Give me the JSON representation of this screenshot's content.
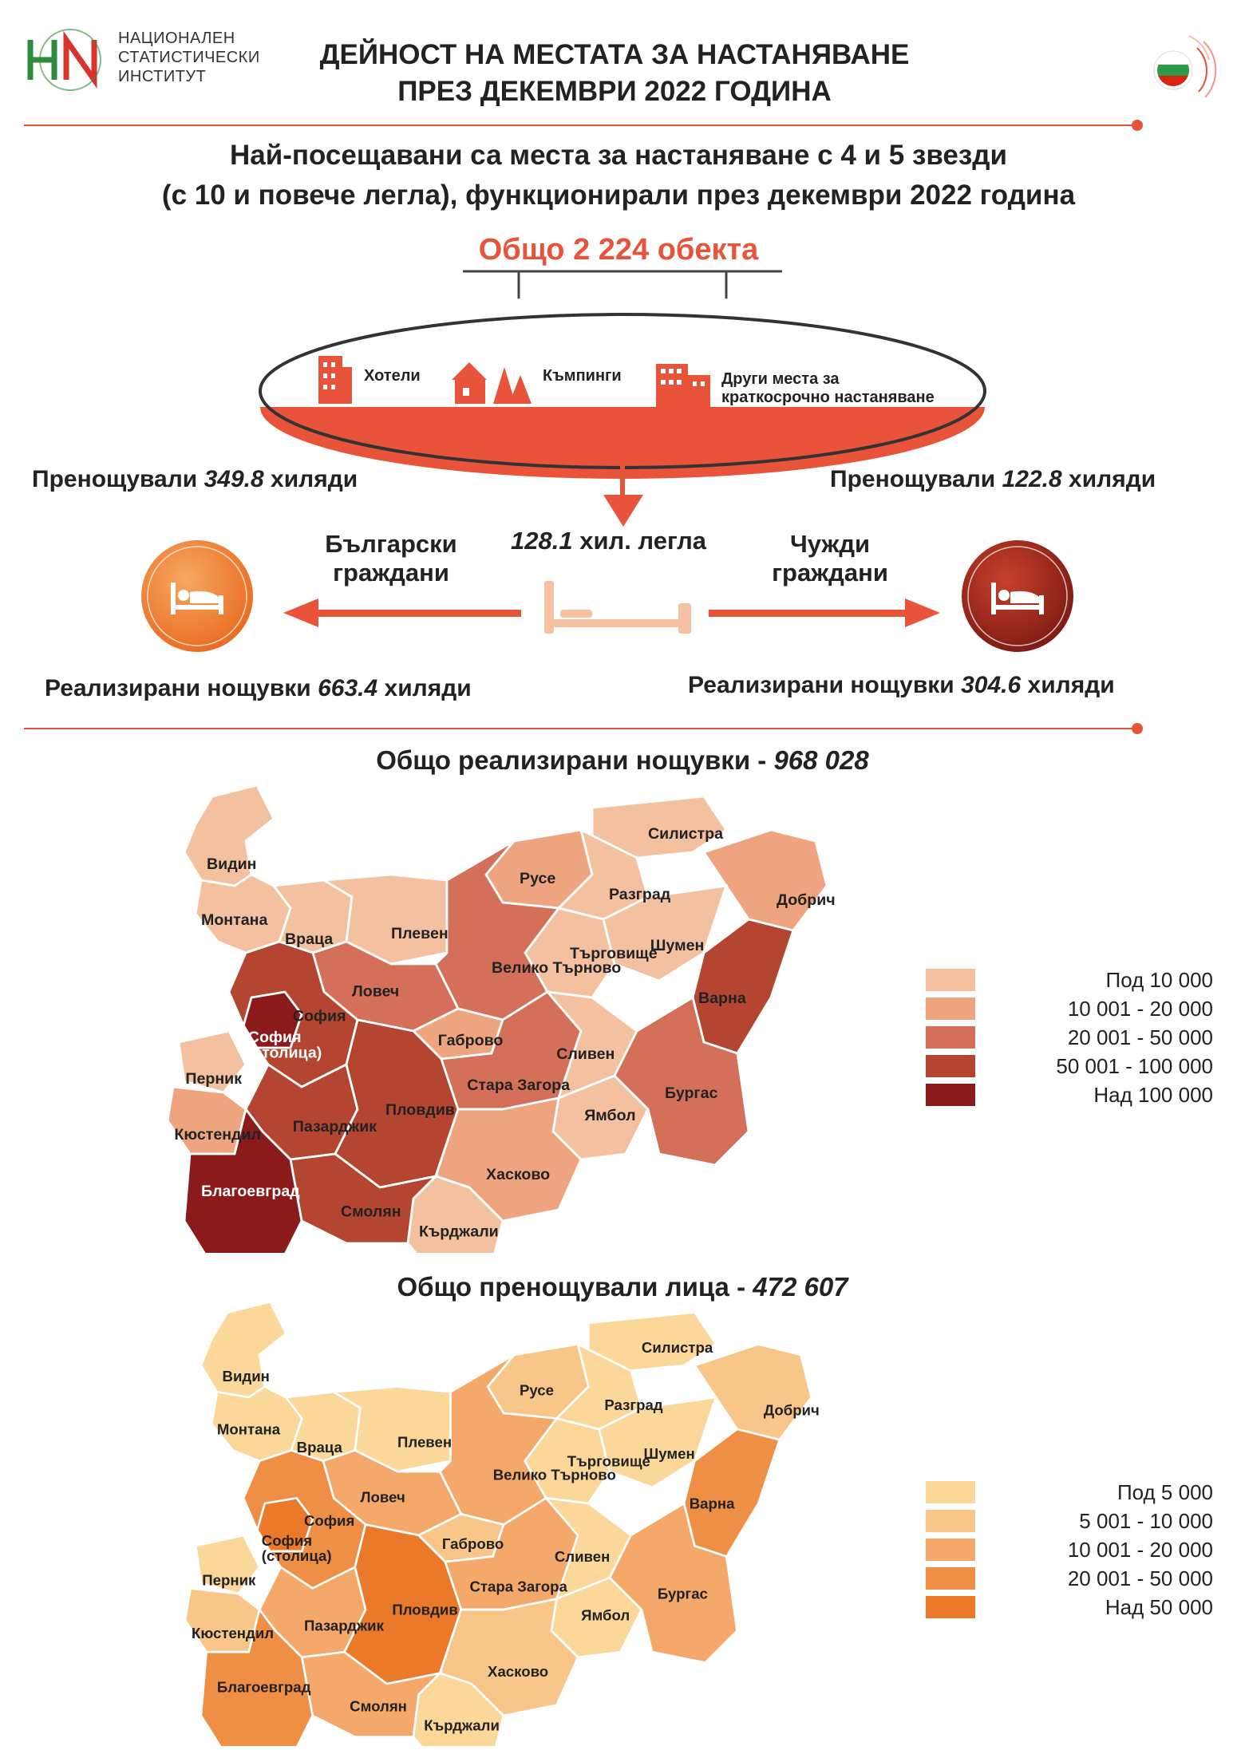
{
  "header": {
    "logo_lines": [
      "НАЦИОНАЛЕН",
      "СТАТИСТИЧЕСКИ",
      "ИНСТИТУТ"
    ],
    "title_line1": "ДЕЙНОСТ НА МЕСТАТА ЗА НАСТАНЯВАНЕ",
    "title_line2": "ПРЕЗ ДЕКЕМВРИ 2022 ГОДИНА"
  },
  "subtitle": {
    "line1": "Най-посещавани са места за настаняване с 4 и 5 звезди",
    "line2": "(с 10 и повече легла), функционирали през декември 2022 година"
  },
  "summary": {
    "total_objects": "Общо 2 224 обекта",
    "categories": {
      "hotels": "Хотели",
      "campings": "Къмпинги",
      "other_line1": "Други места за",
      "other_line2": "краткосрочно настаняване"
    },
    "beds_value": "128.1",
    "beds_unit": "хил. легла",
    "bulgarian": {
      "label_line1": "Български",
      "label_line2": "граждани",
      "stayed_prefix": "Пренощували",
      "stayed_value": "349.8",
      "stayed_suffix": "хиляди",
      "nights_prefix": "Реализирани нощувки",
      "nights_value": "663.4",
      "nights_suffix": "хиляди"
    },
    "foreign": {
      "label_line1": "Чужди",
      "label_line2": "граждани",
      "stayed_prefix": "Пренощували",
      "stayed_value": "122.8",
      "stayed_suffix": "хиляди",
      "nights_prefix": "Реализирани нощувки",
      "nights_value": "304.6",
      "nights_suffix": "хиляди"
    }
  },
  "map_nights": {
    "title_prefix": "Общо реализирани нощувки -",
    "title_value": "968 028",
    "legend": [
      {
        "label": "Под 10 000",
        "color": "#f4c1a0"
      },
      {
        "label": "10 001   -   20 000",
        "color": "#eea47f"
      },
      {
        "label": "20 001   -   50 000",
        "color": "#d4705a"
      },
      {
        "label": "50 001   - 100 000",
        "color": "#b44530"
      },
      {
        "label": "Над 100 000",
        "color": "#8b1a1a"
      }
    ]
  },
  "map_persons": {
    "title_prefix": "Общо пренощували лица -",
    "title_value": "472 607",
    "legend": [
      {
        "label": "Под 5 000",
        "color": "#fbd79a"
      },
      {
        "label": "5 001 - 10 000",
        "color": "#f9c68a"
      },
      {
        "label": "10 001 - 20 000",
        "color": "#f4a86a"
      },
      {
        "label": "20 001 - 50 000",
        "color": "#ef8e45"
      },
      {
        "label": "Над 50 000",
        "color": "#ea7a2a"
      }
    ]
  },
  "regions": [
    {
      "name": "Видин",
      "nights_cls": 0,
      "persons_cls": 0
    },
    {
      "name": "Монтана",
      "nights_cls": 0,
      "persons_cls": 0
    },
    {
      "name": "Враца",
      "nights_cls": 0,
      "persons_cls": 0
    },
    {
      "name": "Плевен",
      "nights_cls": 0,
      "persons_cls": 0
    },
    {
      "name": "Русе",
      "nights_cls": 1,
      "persons_cls": 1
    },
    {
      "name": "Силистра",
      "nights_cls": 0,
      "persons_cls": 0
    },
    {
      "name": "Разград",
      "nights_cls": 0,
      "persons_cls": 0
    },
    {
      "name": "Добрич",
      "nights_cls": 1,
      "persons_cls": 1
    },
    {
      "name": "Търговище",
      "nights_cls": 0,
      "persons_cls": 0
    },
    {
      "name": "Шумен",
      "nights_cls": 0,
      "persons_cls": 0
    },
    {
      "name": "Варна",
      "nights_cls": 3,
      "persons_cls": 3
    },
    {
      "name": "Велико Търново",
      "nights_cls": 2,
      "persons_cls": 2
    },
    {
      "name": "Ловеч",
      "nights_cls": 2,
      "persons_cls": 2
    },
    {
      "name": "Габрово",
      "nights_cls": 1,
      "persons_cls": 1
    },
    {
      "name": "София",
      "nights_cls": 3,
      "persons_cls": 3
    },
    {
      "name": "София (столица)",
      "nights_cls": 4,
      "persons_cls": 4
    },
    {
      "name": "Перник",
      "nights_cls": 0,
      "persons_cls": 0
    },
    {
      "name": "Кюстендил",
      "nights_cls": 1,
      "persons_cls": 1
    },
    {
      "name": "Пазарджик",
      "nights_cls": 3,
      "persons_cls": 2
    },
    {
      "name": "Пловдив",
      "nights_cls": 3,
      "persons_cls": 4
    },
    {
      "name": "Стара Загора",
      "nights_cls": 2,
      "persons_cls": 2
    },
    {
      "name": "Сливен",
      "nights_cls": 0,
      "persons_cls": 0
    },
    {
      "name": "Ямбол",
      "nights_cls": 0,
      "persons_cls": 0
    },
    {
      "name": "Бургас",
      "nights_cls": 2,
      "persons_cls": 2
    },
    {
      "name": "Хасково",
      "nights_cls": 1,
      "persons_cls": 1
    },
    {
      "name": "Кърджали",
      "nights_cls": 0,
      "persons_cls": 0
    },
    {
      "name": "Смолян",
      "nights_cls": 3,
      "persons_cls": 2
    },
    {
      "name": "Благоевград",
      "nights_cls": 4,
      "persons_cls": 3
    }
  ]
}
